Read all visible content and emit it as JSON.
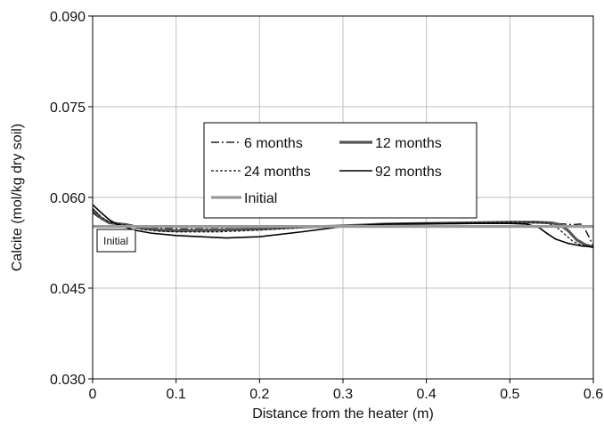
{
  "chart_data": {
    "type": "line",
    "title": "",
    "xlabel": "Distance from the heater (m)",
    "ylabel": "Calcite (mol/kg dry soil)",
    "xlim": [
      0,
      0.6
    ],
    "ylim": [
      0.03,
      0.09
    ],
    "x_ticks": [
      0,
      0.1,
      0.2,
      0.3,
      0.4,
      0.5,
      0.6
    ],
    "x_tick_labels": [
      "0",
      "0.1",
      "0.2",
      "0.3",
      "0.4",
      "0.5",
      "0.6"
    ],
    "y_ticks": [
      0.03,
      0.045,
      0.06,
      0.075,
      0.09
    ],
    "y_tick_labels": [
      "0.030",
      "0.045",
      "0.060",
      "0.075",
      "0.090"
    ],
    "grid": true,
    "legend_position": "top-center",
    "annotation": "Initial",
    "series": [
      {
        "name": "6 months",
        "style": "dash-dot",
        "color": "#222222",
        "x": [
          0,
          0.01,
          0.02,
          0.04,
          0.06,
          0.08,
          0.1,
          0.15,
          0.2,
          0.25,
          0.3,
          0.35,
          0.4,
          0.45,
          0.5,
          0.53,
          0.55,
          0.565,
          0.575,
          0.585,
          0.59,
          0.6
        ],
        "values": [
          0.0575,
          0.0564,
          0.0558,
          0.0556,
          0.0551,
          0.0549,
          0.0548,
          0.0548,
          0.0549,
          0.0551,
          0.0553,
          0.0555,
          0.0556,
          0.0557,
          0.0558,
          0.0558,
          0.0557,
          0.0556,
          0.0555,
          0.0556,
          0.0548,
          0.052
        ]
      },
      {
        "name": "12 months",
        "style": "thick-gray",
        "color": "#555555",
        "x": [
          0,
          0.01,
          0.02,
          0.04,
          0.06,
          0.08,
          0.1,
          0.15,
          0.2,
          0.25,
          0.3,
          0.35,
          0.4,
          0.45,
          0.5,
          0.53,
          0.55,
          0.56,
          0.57,
          0.58,
          0.59,
          0.6
        ],
        "values": [
          0.058,
          0.0566,
          0.0558,
          0.0555,
          0.0549,
          0.0546,
          0.0545,
          0.0546,
          0.0548,
          0.0551,
          0.0553,
          0.0556,
          0.0557,
          0.0558,
          0.0559,
          0.0559,
          0.0558,
          0.0555,
          0.0545,
          0.053,
          0.0522,
          0.0518
        ]
      },
      {
        "name": "24 months",
        "style": "dashed",
        "color": "#111111",
        "x": [
          0,
          0.01,
          0.02,
          0.04,
          0.06,
          0.08,
          0.1,
          0.15,
          0.2,
          0.25,
          0.3,
          0.35,
          0.4,
          0.45,
          0.5,
          0.53,
          0.545,
          0.555,
          0.565,
          0.575,
          0.585,
          0.6
        ],
        "values": [
          0.0582,
          0.0568,
          0.0559,
          0.0554,
          0.0547,
          0.0544,
          0.0543,
          0.0543,
          0.0546,
          0.055,
          0.0553,
          0.0556,
          0.0557,
          0.0558,
          0.0559,
          0.0559,
          0.0558,
          0.0552,
          0.054,
          0.0528,
          0.0521,
          0.0518
        ]
      },
      {
        "name": "92 months",
        "style": "solid",
        "color": "#000000",
        "x": [
          0,
          0.01,
          0.02,
          0.03,
          0.05,
          0.07,
          0.1,
          0.13,
          0.16,
          0.2,
          0.25,
          0.3,
          0.35,
          0.4,
          0.45,
          0.5,
          0.52,
          0.535,
          0.545,
          0.555,
          0.57,
          0.585,
          0.6
        ],
        "values": [
          0.0588,
          0.0575,
          0.0563,
          0.0555,
          0.0546,
          0.0541,
          0.0537,
          0.0535,
          0.0533,
          0.0535,
          0.0543,
          0.0552,
          0.0556,
          0.0557,
          0.0557,
          0.0557,
          0.0556,
          0.055,
          0.054,
          0.0531,
          0.0524,
          0.052,
          0.0518
        ]
      },
      {
        "name": "Initial",
        "style": "thick-light-gray",
        "color": "#9a9a9a",
        "x": [
          0,
          0.6
        ],
        "values": [
          0.0552,
          0.0552
        ]
      }
    ]
  }
}
